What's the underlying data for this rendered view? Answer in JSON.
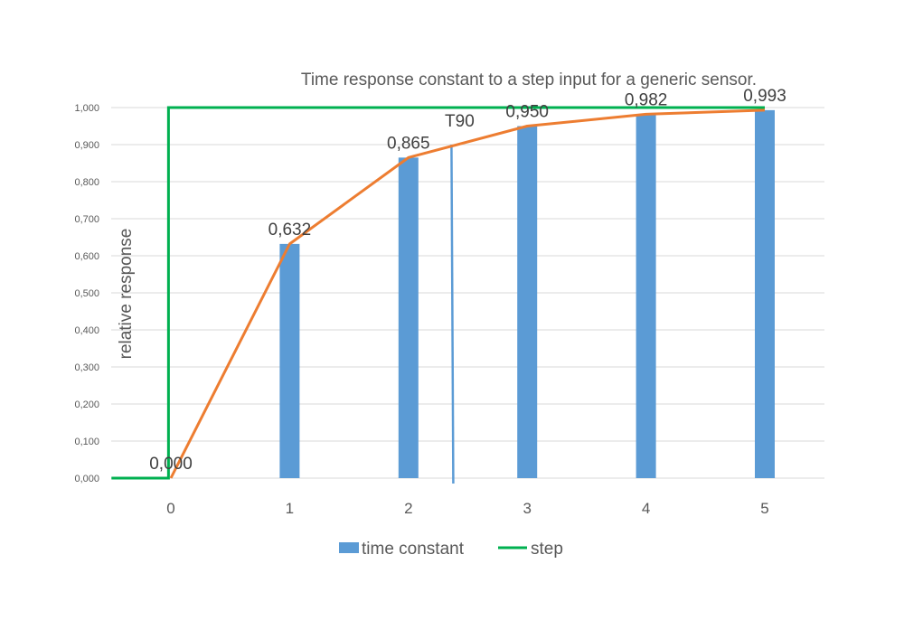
{
  "chart_data": {
    "type": "bar",
    "title": "Time response constant to a step input for a generic sensor.",
    "xlabel": "",
    "ylabel": "relative response",
    "categories": [
      "0",
      "1",
      "2",
      "3",
      "4",
      "5"
    ],
    "ylim": [
      0,
      1
    ],
    "yticks": [
      "0,000",
      "0,100",
      "0,200",
      "0,300",
      "0,400",
      "0,500",
      "0,600",
      "0,700",
      "0,800",
      "0,900",
      "1,000"
    ],
    "grid": true,
    "legend_position": "bottom",
    "series": [
      {
        "name": "time constant",
        "type": "bar",
        "color": "#5B9BD5",
        "values": [
          0,
          0.632,
          0.865,
          0.95,
          0.982,
          0.993
        ]
      },
      {
        "type": "line",
        "color": "#ED7D31",
        "values": [
          0,
          0.632,
          0.865,
          0.95,
          0.982,
          0.993
        ],
        "data_labels": [
          "0,000",
          "0,632",
          "0,865",
          "0,950",
          "0,982",
          "0,993"
        ]
      },
      {
        "name": "step",
        "type": "line",
        "color": "#00B050",
        "x": [
          -0.5,
          -0.02,
          -0.02,
          5
        ],
        "y": [
          0,
          0,
          1,
          1
        ]
      }
    ],
    "annotations": [
      {
        "label": "T90",
        "x": 2.37,
        "y": 0.9,
        "type": "vertical-line",
        "color": "#5B9BD5"
      }
    ]
  }
}
